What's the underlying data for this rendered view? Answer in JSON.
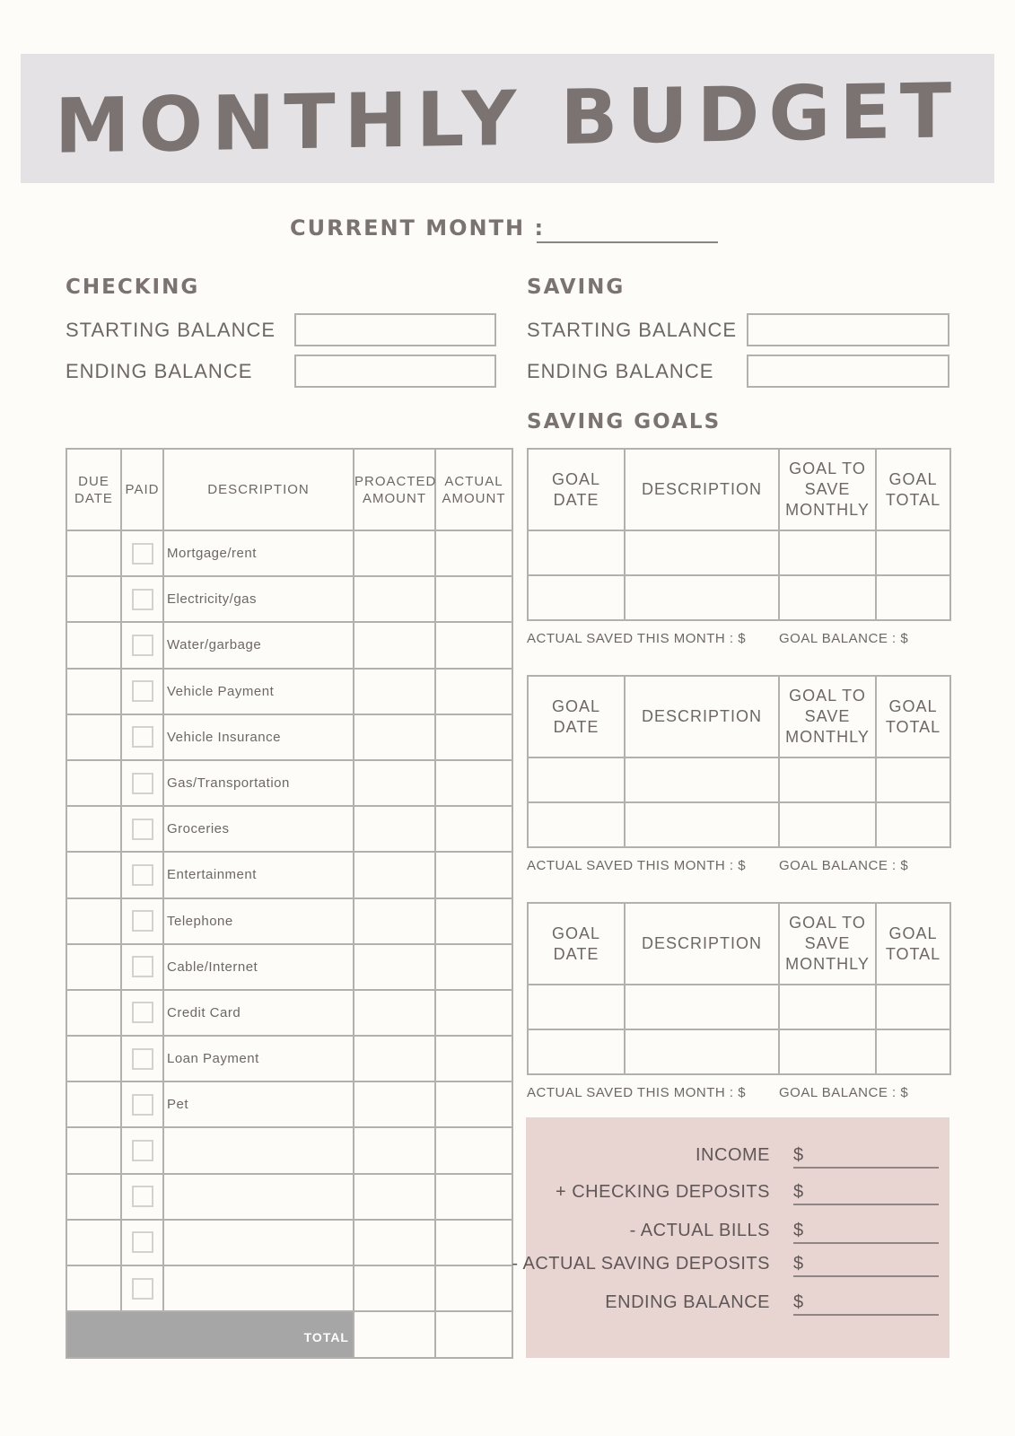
{
  "header": {
    "title": "MONTHLY BUDGET"
  },
  "current_month": {
    "label": "CURRENT MONTH :",
    "value": ""
  },
  "checking": {
    "heading": "CHECKING",
    "starting_label": "STARTING BALANCE",
    "starting_value": "",
    "ending_label": "ENDING BALANCE",
    "ending_value": ""
  },
  "saving": {
    "heading": "SAVING",
    "starting_label": "STARTING BALANCE",
    "starting_value": "",
    "ending_label": "ENDING BALANCE",
    "ending_value": ""
  },
  "bills": {
    "columns": [
      "DUE DATE",
      "PAID",
      "DESCRIPTION",
      "PROACTED AMOUNT",
      "ACTUAL AMOUNT"
    ],
    "rows": [
      "Mortgage/rent",
      "Electricity/gas",
      "Water/garbage",
      "Vehicle Payment",
      "Vehicle Insurance",
      "Gas/Transportation",
      "Groceries",
      "Entertainment",
      "Telephone",
      "Cable/Internet",
      "Credit Card",
      "Loan Payment",
      "Pet",
      "",
      "",
      "",
      ""
    ],
    "total_label": "TOTAL"
  },
  "saving_goals": {
    "heading": "SAVING GOALS",
    "columns": [
      "GOAL DATE",
      "DESCRIPTION",
      "GOAL TO SAVE MONTHLY",
      "GOAL TOTAL"
    ],
    "actual_saved_label": "ACTUAL SAVED THIS MONTH : $",
    "goal_balance_label": "GOAL BALANCE : $",
    "tables": 3,
    "rows_per_table": 2
  },
  "summary": {
    "currency": "$",
    "rows": [
      "INCOME",
      "+ CHECKING DEPOSITS",
      "- ACTUAL BILLS",
      "- ACTUAL SAVING DEPOSITS",
      "ENDING BALANCE"
    ]
  },
  "colors": {
    "band": "#e5e2e6",
    "summary_bg": "#e8d5d2",
    "total_bg": "#a6a6a6",
    "heading": "#7b7371"
  }
}
